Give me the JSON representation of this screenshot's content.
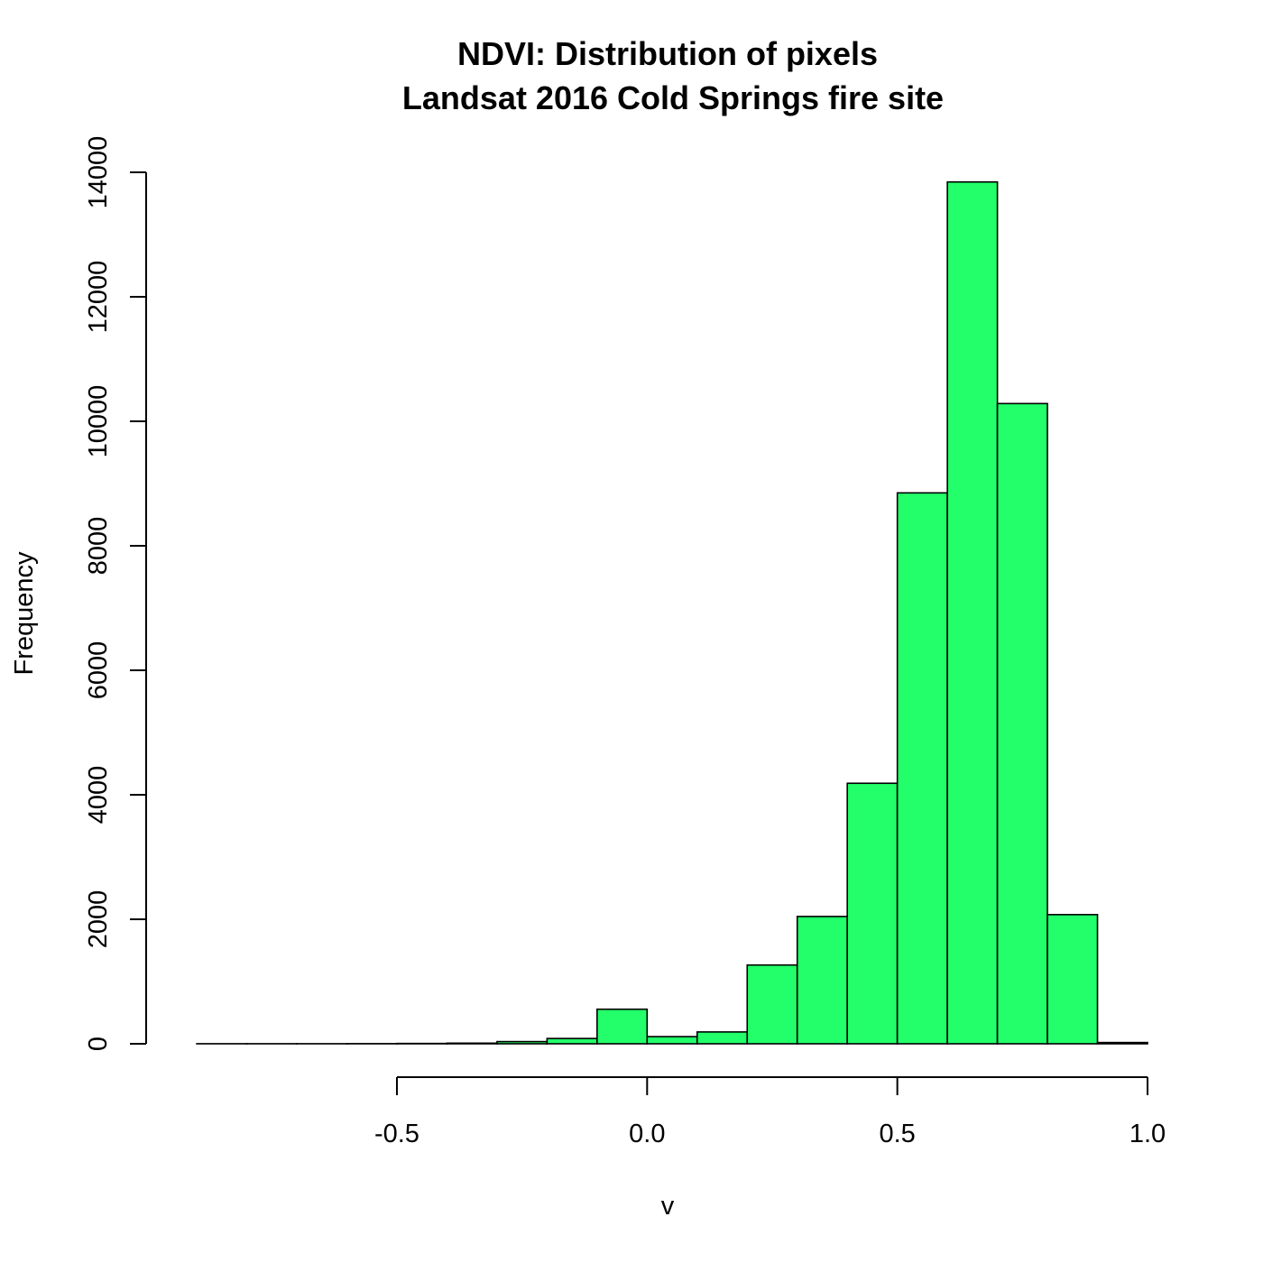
{
  "chart_data": {
    "type": "bar",
    "title": "NDVI: Distribution of pixels",
    "subtitle": "Landsat 2016 Cold Springs fire site",
    "xlabel": "v",
    "ylabel": "Frequency",
    "bar_color": "#22ff6a",
    "xlim": [
      -0.92,
      1.0
    ],
    "ylim": [
      0,
      14000
    ],
    "x_ticks": [
      -0.5,
      0.0,
      0.5,
      1.0
    ],
    "x_tick_labels": [
      "-0.5",
      "0.0",
      "0.5",
      "1.0"
    ],
    "y_ticks": [
      0,
      2000,
      4000,
      6000,
      8000,
      10000,
      12000,
      14000
    ],
    "y_tick_labels": [
      "0",
      "2000",
      "4000",
      "6000",
      "8000",
      "10000",
      "12000",
      "14000"
    ],
    "bins": [
      {
        "from": -0.9,
        "to": -0.8,
        "count": 1
      },
      {
        "from": -0.8,
        "to": -0.7,
        "count": 1
      },
      {
        "from": -0.7,
        "to": -0.6,
        "count": 1
      },
      {
        "from": -0.6,
        "to": -0.5,
        "count": 2
      },
      {
        "from": -0.5,
        "to": -0.4,
        "count": 5
      },
      {
        "from": -0.4,
        "to": -0.3,
        "count": 10
      },
      {
        "from": -0.3,
        "to": -0.2,
        "count": 35
      },
      {
        "from": -0.2,
        "to": -0.1,
        "count": 85
      },
      {
        "from": -0.1,
        "to": 0.0,
        "count": 555
      },
      {
        "from": 0.0,
        "to": 0.1,
        "count": 115
      },
      {
        "from": 0.1,
        "to": 0.2,
        "count": 190
      },
      {
        "from": 0.2,
        "to": 0.3,
        "count": 1265
      },
      {
        "from": 0.3,
        "to": 0.4,
        "count": 2045
      },
      {
        "from": 0.4,
        "to": 0.5,
        "count": 4185
      },
      {
        "from": 0.5,
        "to": 0.6,
        "count": 8850
      },
      {
        "from": 0.6,
        "to": 0.7,
        "count": 13845
      },
      {
        "from": 0.7,
        "to": 0.8,
        "count": 10285
      },
      {
        "from": 0.8,
        "to": 0.9,
        "count": 2075
      },
      {
        "from": 0.9,
        "to": 1.0,
        "count": 20
      }
    ]
  }
}
